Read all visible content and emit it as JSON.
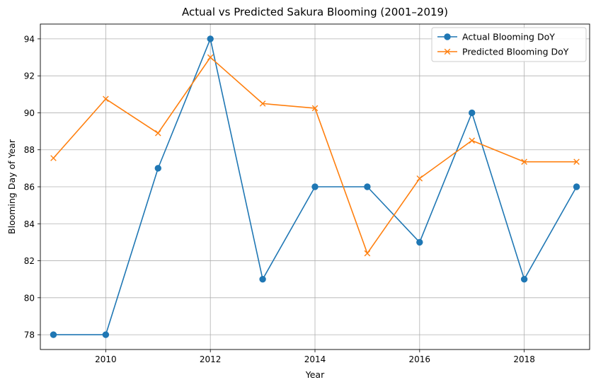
{
  "chart_data": {
    "type": "line",
    "title": "Actual vs Predicted Sakura Blooming (2001–2019)",
    "xlabel": "Year",
    "ylabel": "Blooming Day of Year",
    "x": [
      2009,
      2010,
      2011,
      2012,
      2013,
      2014,
      2015,
      2016,
      2017,
      2018,
      2019
    ],
    "series": [
      {
        "name": "Actual Blooming DoY",
        "values": [
          78,
          78,
          87,
          94,
          81,
          86,
          86,
          83,
          90,
          81,
          86
        ],
        "color": "#1f77b4",
        "marker": "circle"
      },
      {
        "name": "Predicted Blooming DoY",
        "values": [
          87.55,
          90.75,
          88.9,
          93.0,
          90.5,
          90.25,
          82.4,
          86.45,
          88.5,
          87.35,
          87.35
        ],
        "color": "#ff7f0e",
        "marker": "x"
      }
    ],
    "xlim": [
      2008.75,
      2019.25
    ],
    "ylim": [
      77.2,
      94.8
    ],
    "xticks": [
      2010,
      2012,
      2014,
      2016,
      2018
    ],
    "yticks": [
      78,
      80,
      82,
      84,
      86,
      88,
      90,
      92,
      94
    ],
    "grid": true,
    "legend_position": "top-right"
  }
}
